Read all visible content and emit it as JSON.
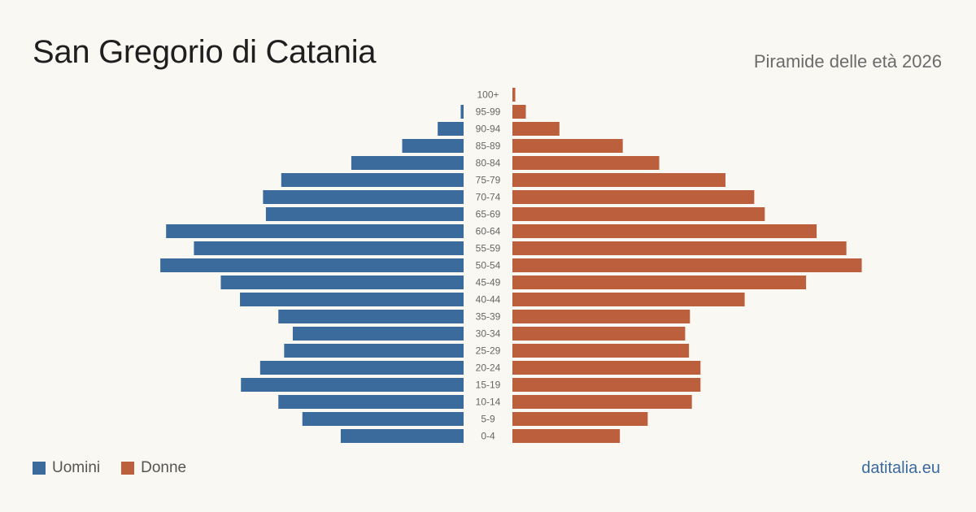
{
  "header": {
    "title": "San Gregorio di Catania",
    "subtitle": "Piramide delle età 2026"
  },
  "legend": {
    "items": [
      {
        "label": "Uomini",
        "color": "#3b6a9c"
      },
      {
        "label": "Donne",
        "color": "#bc5f3d"
      }
    ]
  },
  "footer": {
    "brand": "datitalia.eu"
  },
  "chart_data": {
    "type": "bar",
    "orientation": "horizontal-pyramid",
    "categories": [
      "100+",
      "95-99",
      "90-94",
      "85-89",
      "80-84",
      "75-79",
      "70-74",
      "65-69",
      "60-64",
      "55-59",
      "50-54",
      "45-49",
      "40-44",
      "35-39",
      "30-34",
      "25-29",
      "20-24",
      "15-19",
      "10-14",
      "5-9",
      "0-4"
    ],
    "series": [
      {
        "name": "Uomini",
        "color": "#3b6a9c",
        "values": [
          0,
          3,
          27,
          64,
          117,
          190,
          209,
          206,
          310,
          281,
          316,
          253,
          233,
          193,
          178,
          187,
          212,
          232,
          193,
          168,
          128
        ]
      },
      {
        "name": "Donne",
        "color": "#bc5f3d",
        "values": [
          3,
          14,
          49,
          115,
          153,
          222,
          252,
          263,
          317,
          348,
          364,
          306,
          242,
          185,
          180,
          184,
          196,
          196,
          187,
          141,
          112
        ]
      }
    ],
    "grid": false,
    "legend_position": "bottom-left"
  }
}
